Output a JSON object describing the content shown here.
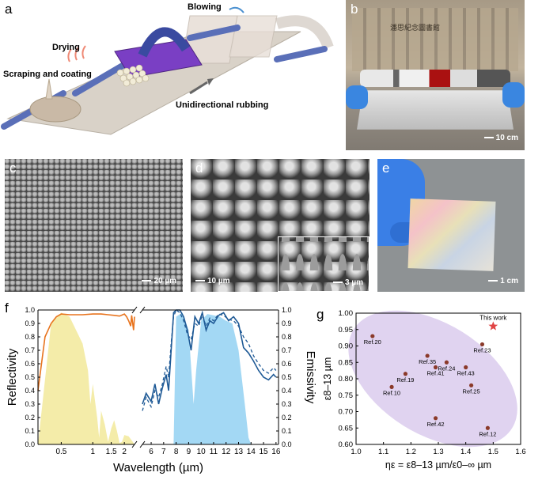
{
  "panels": {
    "a": {
      "label": "a",
      "annotations": {
        "blowing": "Blowing",
        "drying": "Drying",
        "scraping": "Scraping and coating",
        "rubbing": "Unidirectional rubbing"
      }
    },
    "b": {
      "label": "b",
      "sign": "潘思紀念圖書館",
      "scalebar": "10 cm"
    },
    "c": {
      "label": "c",
      "scalebar": "20 µm"
    },
    "d": {
      "label": "d",
      "scalebar": "10 µm",
      "inset_scalebar": "3 µm"
    },
    "e": {
      "label": "e",
      "scalebar": "1 cm"
    },
    "f": {
      "label": "f"
    },
    "g": {
      "label": "g"
    }
  },
  "chart_data": [
    {
      "id": "f",
      "type": "line",
      "xlabel": "Wavelength (µm)",
      "ylabel_left": "Reflectivity",
      "ylabel_right": "Emissivity",
      "ylim": [
        0,
        1.0
      ],
      "yticks": [
        "0.0",
        "0.1",
        "0.2",
        "0.3",
        "0.4",
        "0.5",
        "0.6",
        "0.7",
        "0.8",
        "0.9",
        "1.0"
      ],
      "xticks_left": [
        "0.5",
        "1",
        "1.5",
        "2"
      ],
      "xticks_right": [
        "6",
        "7",
        "8",
        "9",
        "10",
        "11",
        "12",
        "13",
        "14",
        "15",
        "16"
      ],
      "colors": {
        "reflectivity": "#e8741e",
        "solar_fill": "#f0e68c",
        "emissivity": "#1f5a96",
        "atm_fill": "#7cc8f0"
      },
      "reflectivity": {
        "x": [
          0.3,
          0.35,
          0.4,
          0.45,
          0.5,
          0.6,
          0.8,
          1.0,
          1.2,
          1.4,
          1.6,
          1.8,
          2.0,
          2.1,
          2.2,
          2.3,
          2.35,
          2.4,
          2.45,
          2.5
        ],
        "y": [
          0.4,
          0.8,
          0.9,
          0.95,
          0.97,
          0.965,
          0.965,
          0.97,
          0.97,
          0.965,
          0.96,
          0.955,
          0.97,
          0.95,
          0.92,
          0.88,
          0.96,
          0.9,
          0.85,
          0.95
        ]
      },
      "solar_spectrum": {
        "x": [
          0.3,
          0.4,
          0.5,
          0.6,
          0.8,
          0.9,
          0.95,
          1.0,
          1.1,
          1.15,
          1.2,
          1.3,
          1.4,
          1.5,
          1.6,
          1.7,
          1.8,
          1.9,
          2.0,
          2.2,
          2.4,
          2.5
        ],
        "y": [
          0.0,
          0.9,
          0.98,
          0.95,
          0.75,
          0.55,
          0.3,
          0.45,
          0.2,
          0.05,
          0.25,
          0.15,
          0.02,
          0.12,
          0.18,
          0.1,
          0.01,
          0.02,
          0.07,
          0.06,
          0.02,
          0.0
        ]
      },
      "emissivity_solid": {
        "x": [
          5.3,
          5.6,
          6.0,
          6.3,
          6.6,
          6.9,
          7.2,
          7.4,
          7.6,
          7.8,
          8.0,
          8.3,
          8.6,
          8.9,
          9.2,
          9.5,
          9.8,
          10.1,
          10.4,
          10.7,
          11.0,
          11.4,
          11.8,
          12.2,
          12.6,
          13.0,
          13.4,
          13.8,
          14.2,
          14.6,
          15.0,
          15.4,
          15.8,
          16.0
        ],
        "y": [
          0.3,
          0.38,
          0.32,
          0.45,
          0.3,
          0.42,
          0.52,
          0.4,
          0.7,
          0.98,
          1.0,
          1.0,
          0.95,
          0.85,
          0.7,
          0.95,
          0.9,
          0.98,
          0.85,
          0.92,
          0.9,
          0.96,
          0.98,
          0.92,
          0.95,
          0.9,
          0.72,
          0.68,
          0.62,
          0.55,
          0.5,
          0.48,
          0.52,
          0.5
        ]
      },
      "emissivity_dashed": {
        "x": [
          5.3,
          5.6,
          6.0,
          6.3,
          6.6,
          6.9,
          7.2,
          7.4,
          7.6,
          7.8,
          8.0,
          8.3,
          8.6,
          8.9,
          9.2,
          9.5,
          9.8,
          10.1,
          10.4,
          10.7,
          11.0,
          11.4,
          11.8,
          12.2,
          12.6,
          13.0,
          13.4,
          13.8,
          14.2,
          14.6,
          15.0,
          15.4,
          15.8,
          16.0
        ],
        "y": [
          0.25,
          0.35,
          0.28,
          0.4,
          0.35,
          0.45,
          0.58,
          0.5,
          0.75,
          0.95,
          1.0,
          0.98,
          0.92,
          0.82,
          0.78,
          0.9,
          0.88,
          0.96,
          0.88,
          0.94,
          0.92,
          0.97,
          0.96,
          0.93,
          0.92,
          0.88,
          0.8,
          0.75,
          0.66,
          0.6,
          0.55,
          0.53,
          0.57,
          0.55
        ]
      },
      "atm_window": {
        "x": [
          7.8,
          8.0,
          8.5,
          9.0,
          9.4,
          9.6,
          10.0,
          10.5,
          11.0,
          11.5,
          12.0,
          12.5,
          13.0,
          13.5,
          13.8,
          14.0
        ],
        "y": [
          0.0,
          0.95,
          0.98,
          0.85,
          0.3,
          0.55,
          0.92,
          0.97,
          0.96,
          0.95,
          0.92,
          0.9,
          0.7,
          0.3,
          0.05,
          0.0
        ]
      }
    },
    {
      "id": "g",
      "type": "scatter",
      "xlabel": "ηε = ε8–13 µm/ε0–∞ µm",
      "ylabel": "ε8–13 µm",
      "xlim": [
        1.0,
        1.6
      ],
      "ylim": [
        0.6,
        1.0
      ],
      "xticks": [
        "1.0",
        "1.1",
        "1.2",
        "1.3",
        "1.4",
        "1.5",
        "1.6"
      ],
      "yticks": [
        "0.60",
        "0.65",
        "0.70",
        "0.75",
        "0.80",
        "0.85",
        "0.90",
        "0.95",
        "1.00"
      ],
      "colors": {
        "point": "#8b3a2a",
        "star": "#e04444",
        "ellipse": "#d8c8ec"
      },
      "points": [
        {
          "name": "Ref.20",
          "x": 1.06,
          "y": 0.93
        },
        {
          "name": "Ref.35",
          "x": 1.26,
          "y": 0.87
        },
        {
          "name": "Ref.24",
          "x": 1.33,
          "y": 0.85
        },
        {
          "name": "Ref.41",
          "x": 1.29,
          "y": 0.835
        },
        {
          "name": "Ref.43",
          "x": 1.4,
          "y": 0.835
        },
        {
          "name": "Ref.19",
          "x": 1.18,
          "y": 0.815
        },
        {
          "name": "Ref.10",
          "x": 1.13,
          "y": 0.775
        },
        {
          "name": "Ref.25",
          "x": 1.42,
          "y": 0.78
        },
        {
          "name": "Ref.23",
          "x": 1.46,
          "y": 0.905
        },
        {
          "name": "Ref.42",
          "x": 1.29,
          "y": 0.68
        },
        {
          "name": "Ref.12",
          "x": 1.48,
          "y": 0.65
        }
      ],
      "highlight": {
        "name": "This work",
        "x": 1.5,
        "y": 0.96
      }
    }
  ]
}
